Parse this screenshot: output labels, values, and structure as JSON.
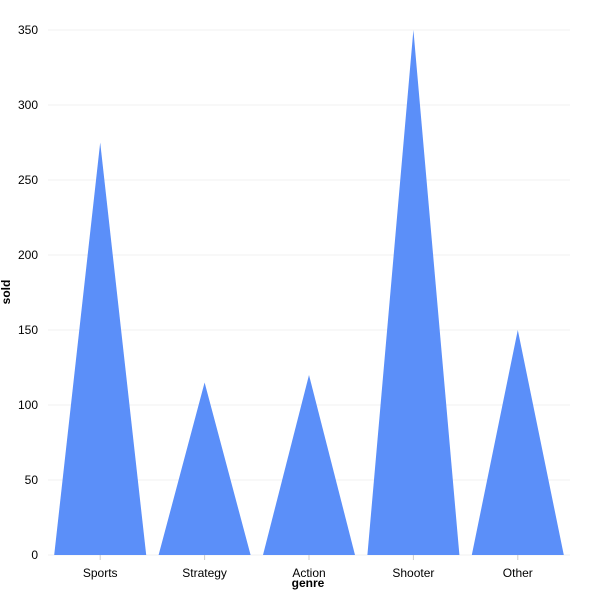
{
  "chart_data": {
    "type": "bar",
    "mark_shape": "triangle",
    "categories": [
      "Sports",
      "Strategy",
      "Action",
      "Shooter",
      "Other"
    ],
    "values": [
      275,
      115,
      120,
      350,
      150
    ],
    "xlabel": "genre",
    "ylabel": "sold",
    "ylim": [
      0,
      350
    ],
    "yticks": [
      0,
      50,
      100,
      150,
      200,
      250,
      300,
      350
    ],
    "grid": true,
    "legend": "none",
    "colors": {
      "fill": "#5b8ff9",
      "grid": "#f0f0f0",
      "text": "#000000"
    }
  }
}
